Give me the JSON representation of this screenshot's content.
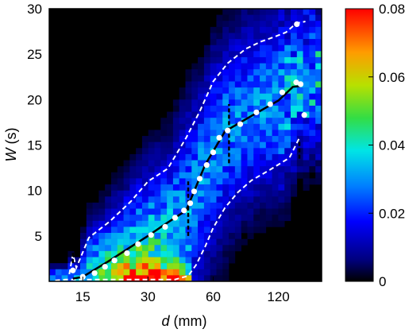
{
  "chart_data": {
    "type": "heatmap",
    "title": "",
    "xlabel": {
      "var": "d",
      "unit": "(mm)"
    },
    "ylabel": {
      "var": "W",
      "unit": "(s)"
    },
    "x_scale": "log",
    "x_range_mm": [
      10.5,
      190
    ],
    "x_ticks": [
      {
        "value": 15,
        "label": "15"
      },
      {
        "value": 30,
        "label": "30"
      },
      {
        "value": 60,
        "label": "60"
      },
      {
        "value": 120,
        "label": "120"
      }
    ],
    "y_range": [
      0,
      30
    ],
    "y_ticks": [
      {
        "value": 5,
        "label": "5"
      },
      {
        "value": 10,
        "label": "10"
      },
      {
        "value": 15,
        "label": "15"
      },
      {
        "value": 20,
        "label": "20"
      },
      {
        "value": 25,
        "label": "25"
      },
      {
        "value": 30,
        "label": "30"
      }
    ],
    "colorbar": {
      "range": [
        0,
        0.08
      ],
      "ticks": [
        {
          "value": 0,
          "label": "0"
        },
        {
          "value": 0.02,
          "label": "0.02"
        },
        {
          "value": 0.04,
          "label": "0.04"
        },
        {
          "value": 0.06,
          "label": "0.06"
        },
        {
          "value": 0.08,
          "label": "0.08"
        }
      ],
      "colormap": "jet"
    },
    "median_line": {
      "color": "#000000",
      "points": [
        [
          13.5,
          0.3
        ],
        [
          15,
          0.5
        ],
        [
          20,
          2.3
        ],
        [
          25,
          3.8
        ],
        [
          30,
          5.0
        ],
        [
          35,
          6.1
        ],
        [
          45,
          7.8
        ],
        [
          55,
          12.8
        ],
        [
          68,
          16.5
        ],
        [
          90,
          18.2
        ],
        [
          120,
          19.9
        ],
        [
          140,
          21.4
        ],
        [
          152,
          21.5
        ]
      ]
    },
    "marker_points": {
      "color": "#ffffff",
      "points": [
        [
          13.5,
          1.2
        ],
        [
          15,
          0.5
        ],
        [
          17,
          0.9
        ],
        [
          19,
          1.6
        ],
        [
          21,
          2.3
        ],
        [
          24,
          3.1
        ],
        [
          27,
          4.1
        ],
        [
          31,
          5.1
        ],
        [
          36,
          6.0
        ],
        [
          40,
          7.0
        ],
        [
          44,
          7.8
        ],
        [
          47,
          8.6
        ],
        [
          49,
          9.9
        ],
        [
          52,
          11.3
        ],
        [
          56,
          12.8
        ],
        [
          60,
          14.2
        ],
        [
          64,
          15.8
        ],
        [
          70,
          16.6
        ],
        [
          80,
          17.3
        ],
        [
          95,
          18.6
        ],
        [
          110,
          19.5
        ],
        [
          125,
          20.8
        ],
        [
          145,
          21.9
        ],
        [
          152,
          21.7
        ],
        [
          158,
          18.3
        ],
        [
          146,
          28.3
        ]
      ]
    },
    "upper_band": {
      "color": "#ffffff",
      "points": [
        [
          13,
          0.8
        ],
        [
          13.5,
          3.0
        ],
        [
          14,
          1.5
        ],
        [
          16,
          4.8
        ],
        [
          20,
          6.6
        ],
        [
          25,
          8.8
        ],
        [
          30,
          11.0
        ],
        [
          37,
          12.4
        ],
        [
          45,
          15.8
        ],
        [
          52,
          18.7
        ],
        [
          60,
          22.0
        ],
        [
          70,
          24.0
        ],
        [
          85,
          25.6
        ],
        [
          100,
          26.4
        ],
        [
          115,
          26.9
        ],
        [
          130,
          27.4
        ],
        [
          145,
          28.4
        ],
        [
          160,
          28.6
        ]
      ]
    },
    "lower_band": {
      "color": "#ffffff",
      "points": [
        [
          11.2,
          0.1
        ],
        [
          12.5,
          0.2
        ],
        [
          40,
          0.2
        ],
        [
          46,
          0.6
        ],
        [
          50,
          1.8
        ],
        [
          55,
          3.8
        ],
        [
          60,
          5.9
        ],
        [
          68,
          8.1
        ],
        [
          78,
          9.8
        ],
        [
          90,
          11.1
        ],
        [
          110,
          12.3
        ],
        [
          135,
          13.6
        ],
        [
          150,
          15.8
        ]
      ]
    },
    "error_bars": [
      {
        "x": 13.5,
        "y": [
          2.0,
          4.0
        ]
      },
      {
        "x": 46,
        "y": [
          5.0,
          11.0
        ]
      },
      {
        "x": 71,
        "y": [
          13.0,
          19.5
        ]
      },
      {
        "x": 150,
        "y": [
          13.5,
          15.5
        ]
      }
    ]
  }
}
